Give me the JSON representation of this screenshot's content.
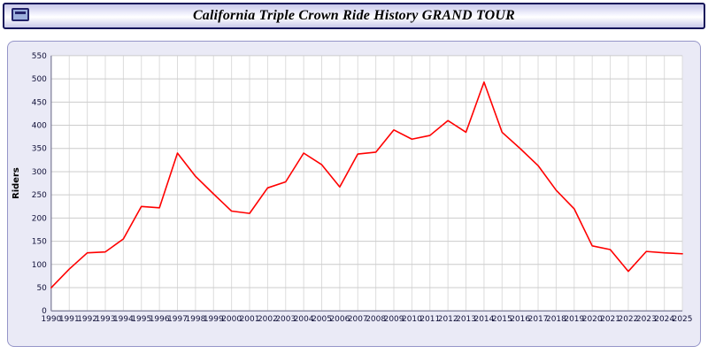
{
  "header": {
    "title": "California Triple Crown Ride History GRAND TOUR",
    "icon": "logo-icon"
  },
  "colors": {
    "accent_navy": "#14145a",
    "panel_bg": "#eaeaf6",
    "plot_bg": "#ffffff",
    "gridline": "#cccccc",
    "line": "#ff0000"
  },
  "chart_data": {
    "type": "line",
    "title": "California Triple Crown Ride History GRAND TOUR",
    "xlabel": "",
    "ylabel": "Riders",
    "ylim": [
      0,
      550
    ],
    "ytick_step": 50,
    "grid": true,
    "legend": "none",
    "line_color": "#ff0000",
    "categories": [
      "1990",
      "1991",
      "1992",
      "1993",
      "1994",
      "1995",
      "1996",
      "1997",
      "1998",
      "1999",
      "2000",
      "2001",
      "2002",
      "2003",
      "2004",
      "2005",
      "2006",
      "2007",
      "2008",
      "2009",
      "2010",
      "2011",
      "2012",
      "2013",
      "2014",
      "2015",
      "2016",
      "2017",
      "2018",
      "2019",
      "2020",
      "2021",
      "2022",
      "2023",
      "2024",
      "2025"
    ],
    "values": [
      50,
      90,
      125,
      127,
      155,
      225,
      222,
      340,
      290,
      252,
      215,
      210,
      265,
      278,
      340,
      315,
      267,
      338,
      342,
      390,
      370,
      378,
      410,
      385,
      493,
      385,
      350,
      313,
      260,
      220,
      140,
      132,
      85,
      128,
      125,
      123
    ]
  }
}
